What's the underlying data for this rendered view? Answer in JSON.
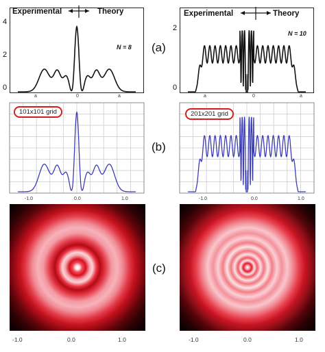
{
  "labels": {
    "a": "(a)",
    "b": "(b)",
    "c": "(c)"
  },
  "panel_a": {
    "left": {
      "header_left": "Experimental",
      "header_right": "Theory",
      "n_label": "N = 8",
      "y_ticks": [
        "4",
        "2",
        "0"
      ],
      "x_ticks": [
        "a",
        "0",
        "a"
      ]
    },
    "right": {
      "header_left": "Experimental",
      "header_right": "Theory",
      "n_label": "N = 10",
      "y_ticks": [
        "2",
        "0"
      ],
      "x_ticks": [
        "a",
        "0",
        "a"
      ]
    }
  },
  "panel_b": {
    "left": {
      "grid_label": "101x101 grid",
      "x_ticks": [
        "-1.0",
        "0.0",
        "1.0"
      ]
    },
    "right": {
      "grid_label": "201x201 grid",
      "x_ticks": [
        "-1.0",
        "0.0",
        "1.0"
      ]
    }
  },
  "panel_c": {
    "left": {
      "x_ticks": [
        "-1.0",
        "0.0",
        "1.0"
      ]
    },
    "right": {
      "x_ticks": [
        "-1.0",
        "0.0",
        "1.0"
      ]
    }
  },
  "colors": {
    "curve_blue": "#3b3bb5",
    "ring_red": "#e01b2a",
    "oval_red": "#d21e1e"
  }
}
